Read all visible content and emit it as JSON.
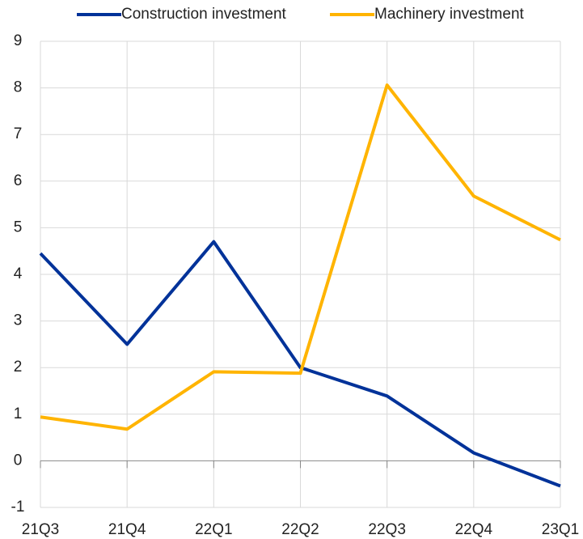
{
  "chart_data": {
    "type": "line",
    "categories": [
      "21Q3",
      "21Q4",
      "22Q1",
      "22Q2",
      "22Q3",
      "22Q4",
      "23Q1"
    ],
    "series": [
      {
        "name": "Construction investment",
        "color": "#003299",
        "values": [
          4.45,
          2.5,
          4.7,
          2.0,
          1.39,
          0.17,
          -0.54
        ]
      },
      {
        "name": "Machinery investment",
        "color": "#ffb400",
        "values": [
          0.94,
          0.68,
          1.91,
          1.88,
          8.06,
          5.68,
          4.74
        ]
      }
    ],
    "ylim": [
      -1,
      9
    ],
    "yticks": [
      -1,
      0,
      1,
      2,
      3,
      4,
      5,
      6,
      7,
      8,
      9
    ],
    "grid": true
  }
}
